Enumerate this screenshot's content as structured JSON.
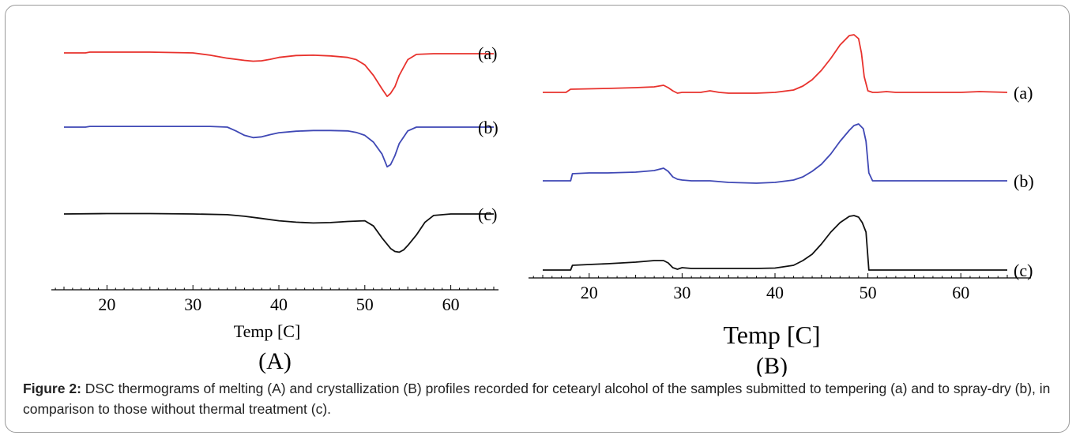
{
  "colors": {
    "a": "#e8322d",
    "b": "#3f48b5",
    "c": "#111111"
  },
  "chart_data": [
    {
      "type": "line",
      "panel_label": "(A)",
      "xlabel": "Temp  [C]",
      "ylabel": "",
      "xlim": [
        13,
        67
      ],
      "xticks": [
        20,
        30,
        40,
        50,
        60
      ],
      "series": [
        {
          "name": "(a)",
          "color": "#e8322d",
          "baseline": 0,
          "label_offset": 0,
          "x": [
            15,
            17.5,
            18,
            20,
            25,
            30,
            32,
            34,
            36,
            37,
            38,
            39,
            40,
            42,
            44,
            46,
            48,
            49,
            50,
            51,
            52,
            52.6,
            53,
            53.5,
            54,
            55,
            56,
            58,
            60,
            62,
            65
          ],
          "y": [
            0,
            0,
            0.1,
            0.1,
            0.1,
            0,
            -0.3,
            -0.7,
            -1.0,
            -1.1,
            -1.05,
            -0.85,
            -0.6,
            -0.35,
            -0.3,
            -0.4,
            -0.6,
            -0.9,
            -1.6,
            -3.0,
            -4.8,
            -5.8,
            -5.4,
            -4.5,
            -3.0,
            -0.9,
            -0.2,
            -0.1,
            -0.1,
            -0.1,
            -0.1
          ]
        },
        {
          "name": "(b)",
          "color": "#3f48b5",
          "baseline": 0,
          "label_offset": 0,
          "x": [
            15,
            17.5,
            18,
            20,
            25,
            30,
            32,
            34,
            35,
            36,
            37,
            38,
            39,
            40,
            42,
            44,
            46,
            48,
            49,
            50,
            51,
            52,
            52.6,
            53,
            53.5,
            54,
            55,
            56,
            58,
            60,
            62,
            65
          ],
          "y": [
            0,
            0,
            0.1,
            0.1,
            0.1,
            0.1,
            0.1,
            0,
            -0.5,
            -1.1,
            -1.4,
            -1.3,
            -1.0,
            -0.75,
            -0.55,
            -0.45,
            -0.45,
            -0.5,
            -0.7,
            -1.1,
            -2.0,
            -3.6,
            -5.3,
            -5.0,
            -3.8,
            -2.2,
            -0.5,
            0,
            0,
            0,
            0,
            0
          ]
        },
        {
          "name": "(c)",
          "color": "#111111",
          "baseline": 0,
          "label_offset": 0,
          "x": [
            15,
            20,
            25,
            30,
            34,
            36,
            38,
            40,
            42,
            44,
            46,
            48,
            50,
            51,
            52,
            53,
            53.5,
            54,
            54.5,
            55,
            56,
            57,
            58,
            60,
            62,
            65
          ],
          "y": [
            0,
            0.05,
            0.05,
            0,
            -0.1,
            -0.3,
            -0.6,
            -0.9,
            -1.1,
            -1.2,
            -1.15,
            -1.0,
            -0.9,
            -1.6,
            -3.2,
            -4.6,
            -5.0,
            -5.1,
            -4.8,
            -4.2,
            -2.8,
            -1.1,
            -0.2,
            0,
            0,
            0
          ]
        }
      ]
    },
    {
      "type": "line",
      "panel_label": "(B)",
      "xlabel": "Temp  [C]",
      "ylabel": "",
      "xlim": [
        13,
        67
      ],
      "xticks": [
        20,
        30,
        40,
        50,
        60
      ],
      "series": [
        {
          "name": "(a)",
          "color": "#e8322d",
          "x": [
            15,
            17.5,
            18,
            20,
            22,
            25,
            27,
            28,
            28.5,
            29,
            29.5,
            30,
            31,
            32,
            33,
            34,
            35,
            38,
            40,
            42,
            43,
            44,
            45,
            46,
            47,
            48,
            48.5,
            49,
            49.3,
            49.6,
            50,
            50.5,
            51,
            52,
            53,
            56,
            60,
            62,
            65
          ],
          "y": [
            0,
            0,
            0.4,
            0.45,
            0.5,
            0.6,
            0.7,
            0.9,
            0.6,
            0.2,
            -0.1,
            0,
            0,
            0,
            0.2,
            0,
            -0.1,
            -0.1,
            0,
            0.3,
            0.8,
            1.6,
            2.8,
            4.3,
            6.0,
            7.2,
            7.3,
            6.8,
            5.0,
            2.0,
            0.2,
            0,
            0,
            0.1,
            0,
            0,
            0,
            0.1,
            0
          ]
        },
        {
          "name": "(b)",
          "color": "#3f48b5",
          "x": [
            15,
            18,
            18.2,
            20,
            22,
            25,
            27,
            28,
            28.5,
            29,
            29.5,
            30,
            31,
            33,
            35,
            38,
            40,
            42,
            43,
            44,
            45,
            46,
            47,
            48,
            48.5,
            49,
            49.5,
            49.8,
            50.1,
            50.5,
            52,
            55,
            60,
            65
          ],
          "y": [
            0,
            0,
            0.9,
            1.0,
            1.0,
            1.1,
            1.3,
            1.6,
            1.2,
            0.5,
            0.2,
            0.1,
            0,
            0,
            -0.2,
            -0.3,
            -0.2,
            0.1,
            0.5,
            1.2,
            2.1,
            3.4,
            5.0,
            6.4,
            7.0,
            7.2,
            6.6,
            5.0,
            1.0,
            0,
            0,
            0,
            0,
            0
          ]
        },
        {
          "name": "(c)",
          "color": "#111111",
          "x": [
            15,
            18,
            18.2,
            20,
            22,
            25,
            27,
            28,
            28.5,
            29,
            29.5,
            30,
            31,
            33,
            35,
            38,
            40,
            42,
            43,
            44,
            45,
            46,
            47,
            48,
            48.5,
            49,
            49.4,
            49.8,
            50.1,
            52,
            55,
            60,
            65
          ],
          "y": [
            0,
            0,
            0.6,
            0.7,
            0.8,
            1.0,
            1.2,
            1.2,
            0.9,
            0.3,
            0.1,
            0.3,
            0.2,
            0.2,
            0.2,
            0.2,
            0.25,
            0.6,
            1.2,
            2.0,
            3.3,
            4.8,
            6.0,
            6.8,
            6.9,
            6.7,
            6.0,
            4.8,
            0,
            0,
            0,
            0,
            0
          ]
        }
      ]
    }
  ],
  "caption": {
    "label": "Figure 2:",
    "text": " DSC thermograms of melting (A) and crystallization (B) profiles recorded for cetearyl alcohol of the samples submitted to tempering (a) and to spray-dry (b), in comparison to those without thermal treatment (c)."
  }
}
